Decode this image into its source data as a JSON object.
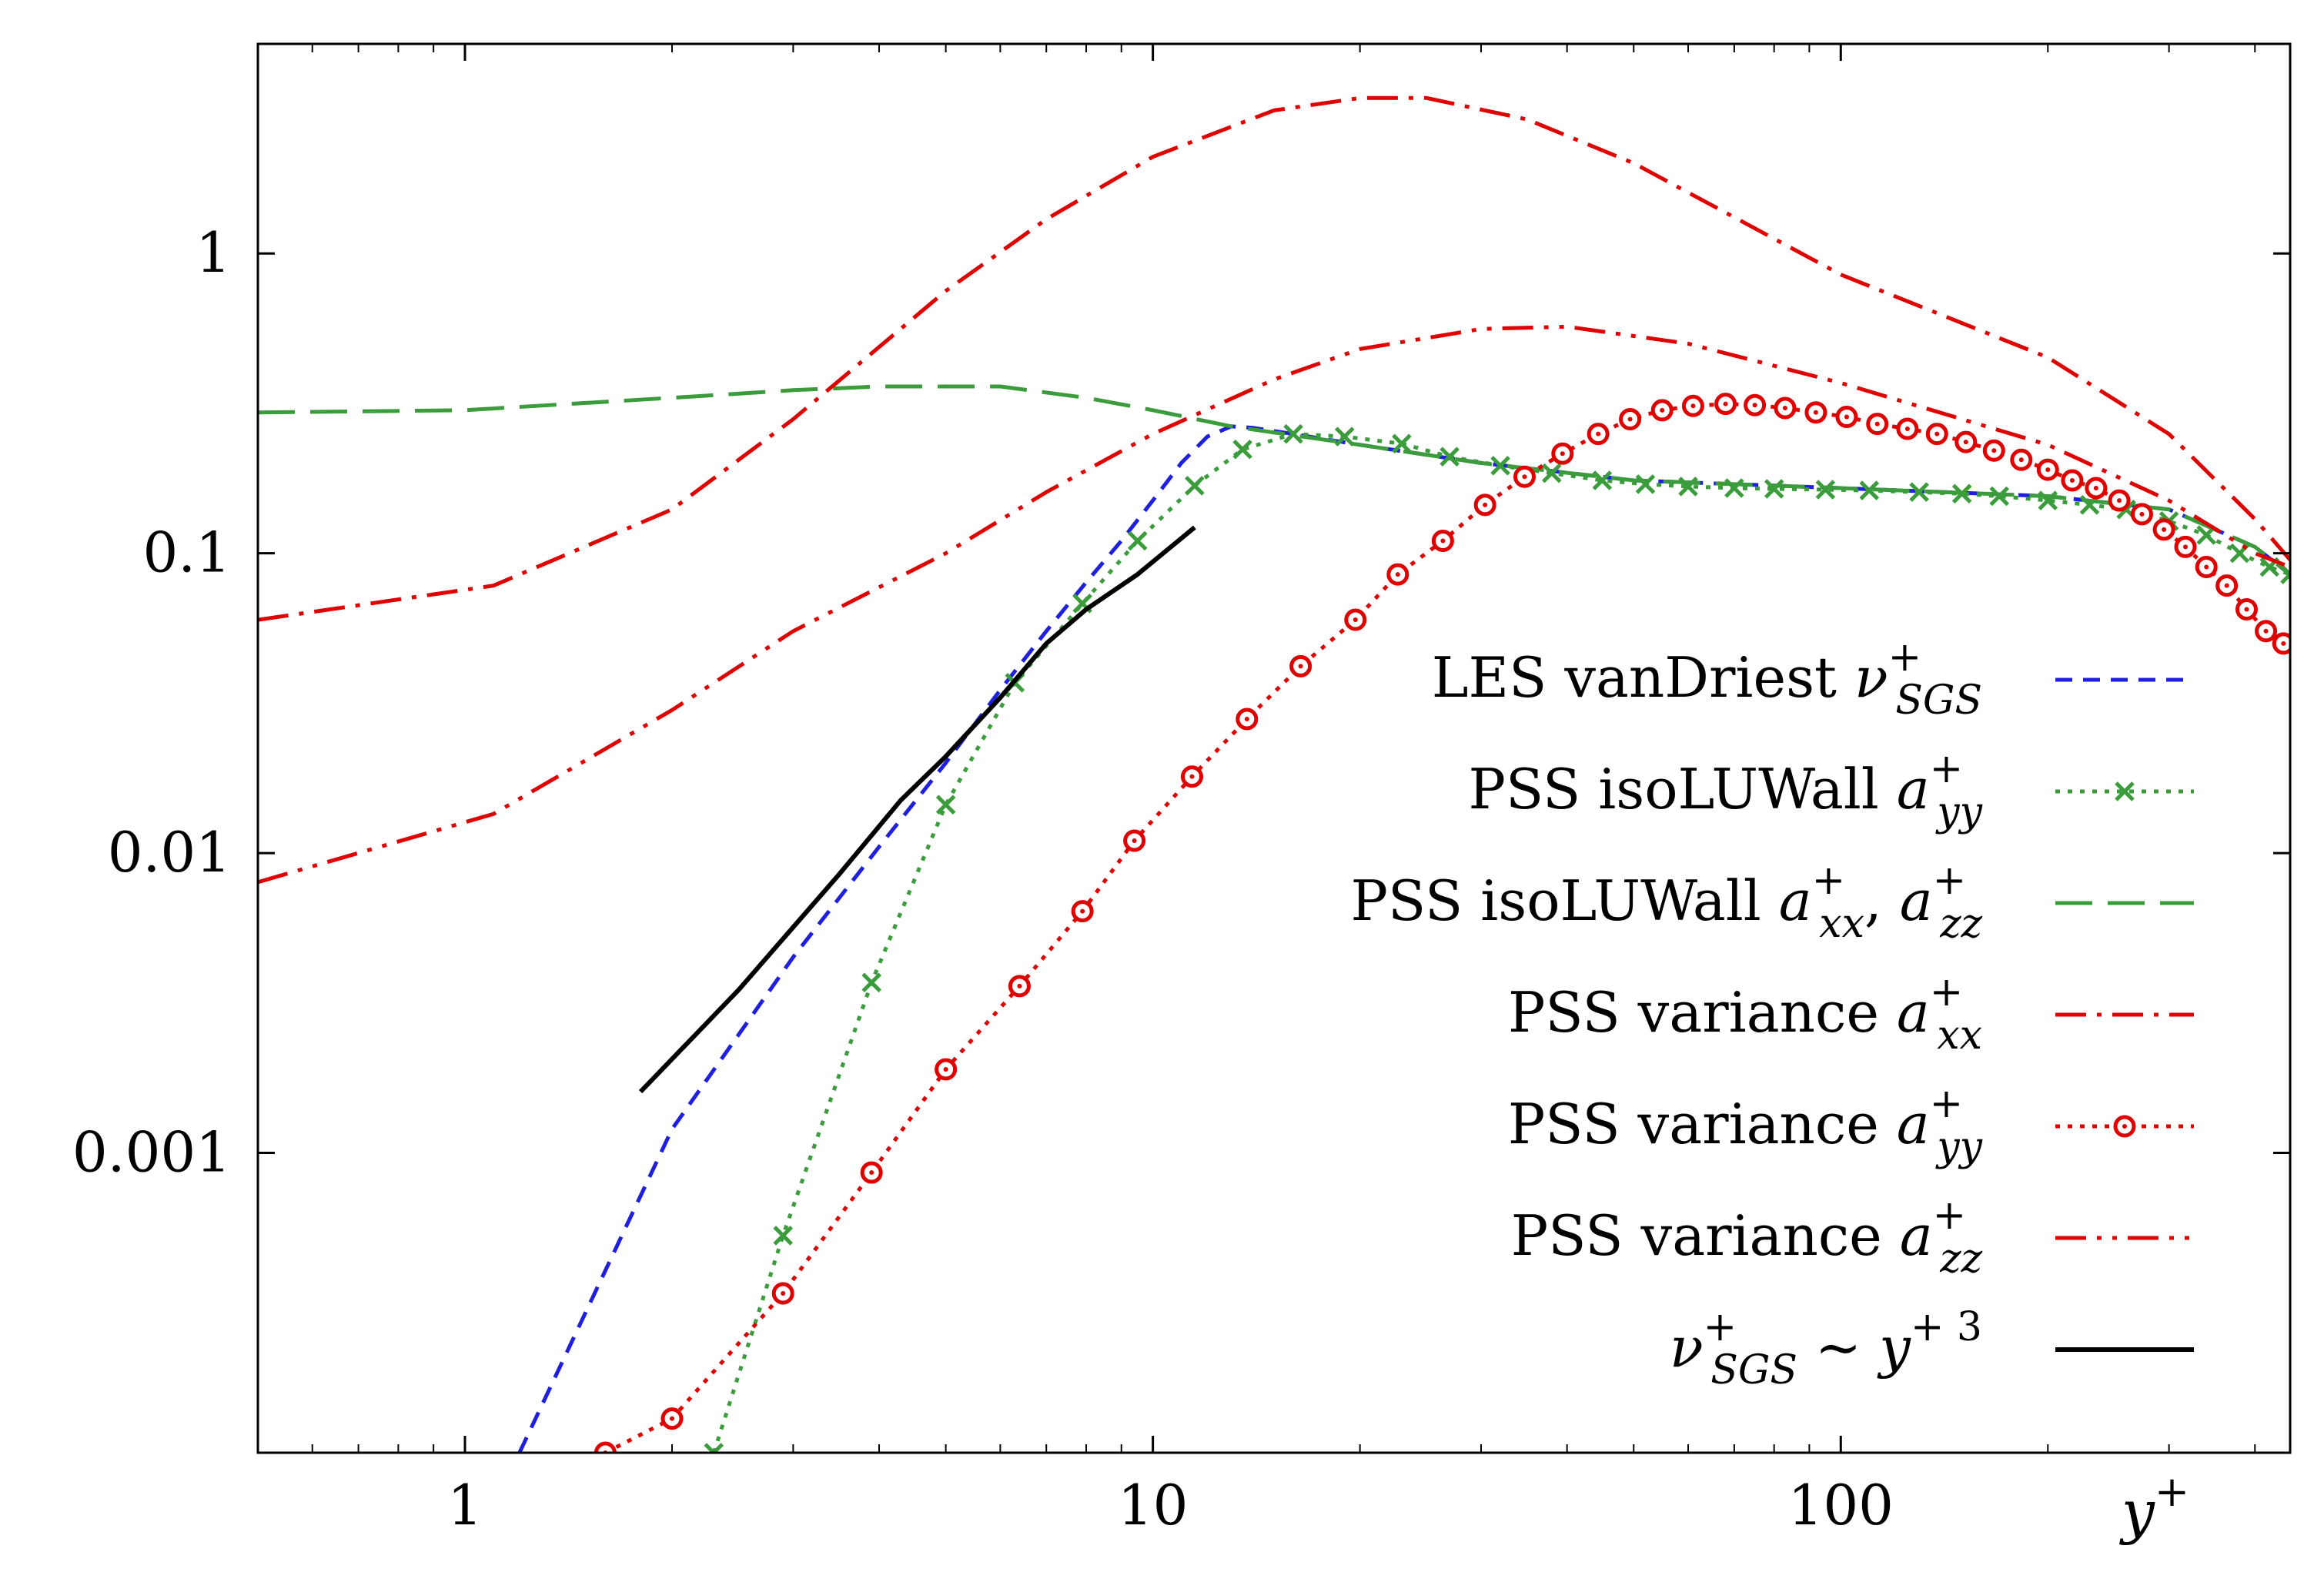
{
  "chart_data": {
    "type": "line",
    "title": "",
    "xlabel": "y+",
    "ylabel": "",
    "xscale": "log",
    "yscale": "log",
    "xlim": [
      0.5,
      450
    ],
    "ylim": [
      0.0001,
      5
    ],
    "grid": false,
    "legend_position": "lower-right",
    "x_ticks": [
      {
        "value": 1,
        "label": "1"
      },
      {
        "value": 10,
        "label": "10"
      },
      {
        "value": 100,
        "label": "100"
      }
    ],
    "y_ticks": [
      {
        "value": 1,
        "label": "1"
      },
      {
        "value": 0.1,
        "label": "0.1"
      },
      {
        "value": 0.01,
        "label": "0.01"
      },
      {
        "value": 0.001,
        "label": "0.001"
      }
    ],
    "series": [
      {
        "name": "LES vanDriest ν+SGS",
        "color": "#1f1fe0",
        "style": "dashed",
        "marker": "none",
        "x": [
          1.2,
          2.0,
          3.0,
          4.0,
          5.0,
          6.0,
          7.0,
          8.0,
          9.0,
          10.0,
          11.0,
          12.0,
          13.0,
          14.0,
          16.0,
          20.0,
          30.0,
          50.0,
          100.0,
          200.0,
          300.0,
          400.0,
          450.0
        ],
        "y": [
          0.0001,
          0.0012,
          0.0045,
          0.0105,
          0.02,
          0.035,
          0.055,
          0.08,
          0.11,
          0.15,
          0.2,
          0.245,
          0.265,
          0.262,
          0.25,
          0.23,
          0.2,
          0.175,
          0.165,
          0.155,
          0.14,
          0.105,
          0.085
        ]
      },
      {
        "name": "PSS isoLUWall a+yy",
        "color": "#3a9c3a",
        "style": "dotted",
        "marker": "x",
        "x": [
          2.3,
          2.9,
          3.9,
          5.0,
          6.3,
          7.9,
          9.5,
          11.5,
          13.5,
          16,
          19,
          23,
          27,
          32,
          38,
          45,
          52,
          60,
          70,
          80,
          95,
          110,
          130,
          150,
          170,
          200,
          230,
          260,
          300,
          340,
          380,
          420,
          450
        ],
        "y": [
          0.0001,
          0.00053,
          0.0037,
          0.0145,
          0.037,
          0.068,
          0.11,
          0.168,
          0.222,
          0.25,
          0.245,
          0.232,
          0.21,
          0.196,
          0.185,
          0.175,
          0.17,
          0.167,
          0.165,
          0.164,
          0.163,
          0.162,
          0.16,
          0.158,
          0.155,
          0.15,
          0.145,
          0.14,
          0.128,
          0.115,
          0.1,
          0.09,
          0.085
        ]
      },
      {
        "name": "PSS isoLUWall a+xx, a+zz",
        "color": "#3a9c3a",
        "style": "long-dashed",
        "marker": "none",
        "x": [
          0.5,
          1.0,
          2.0,
          3.0,
          4.0,
          6.0,
          8.0,
          10.0,
          13.0,
          20.0,
          30.0,
          50.0,
          100.0,
          200.0,
          300.0,
          400.0,
          450.0
        ],
        "y": [
          0.295,
          0.3,
          0.33,
          0.35,
          0.36,
          0.36,
          0.33,
          0.3,
          0.265,
          0.23,
          0.2,
          0.175,
          0.165,
          0.155,
          0.14,
          0.105,
          0.085
        ]
      },
      {
        "name": "PSS variance a+xx",
        "color": "#e00000",
        "style": "dash-dot",
        "marker": "none",
        "x": [
          0.5,
          1.1,
          2.0,
          3.0,
          5.0,
          7.0,
          10.0,
          15.0,
          20.0,
          25.0,
          35.0,
          50.0,
          100.0,
          200.0,
          300.0,
          400.0,
          450.0
        ],
        "y": [
          0.06,
          0.078,
          0.14,
          0.28,
          0.75,
          1.3,
          2.1,
          3.0,
          3.3,
          3.3,
          2.8,
          2.0,
          0.85,
          0.45,
          0.25,
          0.13,
          0.095
        ]
      },
      {
        "name": "PSS variance a+yy",
        "color": "#e00000",
        "style": "dotted",
        "marker": "o",
        "x": [
          1.6,
          2.0,
          2.9,
          3.9,
          5.0,
          6.4,
          7.9,
          9.4,
          11.4,
          13.7,
          16.4,
          19.7,
          22.7,
          26.4,
          30.4,
          34.7,
          39.4,
          44.4,
          49.4,
          55,
          61,
          68,
          75,
          83,
          92,
          102,
          113,
          125,
          138,
          152,
          167,
          183,
          200,
          217,
          235,
          254,
          274,
          295,
          317,
          340,
          364,
          389,
          415,
          440
        ],
        "y": [
          0.0001,
          0.00013,
          0.00034,
          0.00086,
          0.0019,
          0.0036,
          0.0064,
          0.011,
          0.018,
          0.028,
          0.042,
          0.06,
          0.085,
          0.11,
          0.145,
          0.18,
          0.215,
          0.25,
          0.28,
          0.3,
          0.31,
          0.315,
          0.312,
          0.305,
          0.295,
          0.285,
          0.27,
          0.26,
          0.25,
          0.235,
          0.22,
          0.205,
          0.19,
          0.175,
          0.165,
          0.15,
          0.135,
          0.12,
          0.105,
          0.09,
          0.078,
          0.065,
          0.055,
          0.05
        ]
      },
      {
        "name": "PSS variance a+zz",
        "color": "#e00000",
        "style": "dash-dot-dot",
        "marker": "none",
        "x": [
          0.5,
          1.1,
          2.0,
          3.0,
          5.0,
          7.0,
          10.0,
          15.0,
          20.0,
          30.0,
          40.0,
          60.0,
          100.0,
          200.0,
          300.0,
          400.0,
          450.0
        ],
        "y": [
          0.008,
          0.0135,
          0.03,
          0.055,
          0.1,
          0.16,
          0.25,
          0.38,
          0.48,
          0.56,
          0.57,
          0.5,
          0.37,
          0.23,
          0.15,
          0.1,
          0.09
        ]
      },
      {
        "name": "ν+SGS ~ y+ 3",
        "color": "#000000",
        "style": "solid",
        "marker": "none",
        "x": [
          1.8,
          2.5,
          3.5,
          4.3,
          5.0,
          6.0,
          7.0,
          8.0,
          9.5,
          11.5
        ],
        "y": [
          0.0016,
          0.0035,
          0.0085,
          0.015,
          0.021,
          0.033,
          0.05,
          0.065,
          0.085,
          0.122
        ]
      }
    ]
  },
  "legend": [
    {
      "text": "LES vanDriest ",
      "math": "ν",
      "sup": "+",
      "sub": "SGS"
    },
    {
      "text": "PSS isoLUWall ",
      "math": "a",
      "sup": "+",
      "sub": "yy"
    },
    {
      "text": "PSS isoLUWall ",
      "math": "a",
      "sup": "+",
      "sub": "xx",
      "math2": "a",
      "sup2": "+",
      "sub2": "zz"
    },
    {
      "text": "PSS variance ",
      "math": "a",
      "sup": "+",
      "sub": "xx"
    },
    {
      "text": "PSS variance ",
      "math": "a",
      "sup": "+",
      "sub": "yy"
    },
    {
      "text": "PSS variance ",
      "math": "a",
      "sup": "+",
      "sub": "zz"
    },
    {
      "text": "",
      "math": "ν",
      "sup": "+",
      "sub": "SGS",
      "tail": " ∼ y",
      "tail_sup": "+ 3"
    }
  ]
}
